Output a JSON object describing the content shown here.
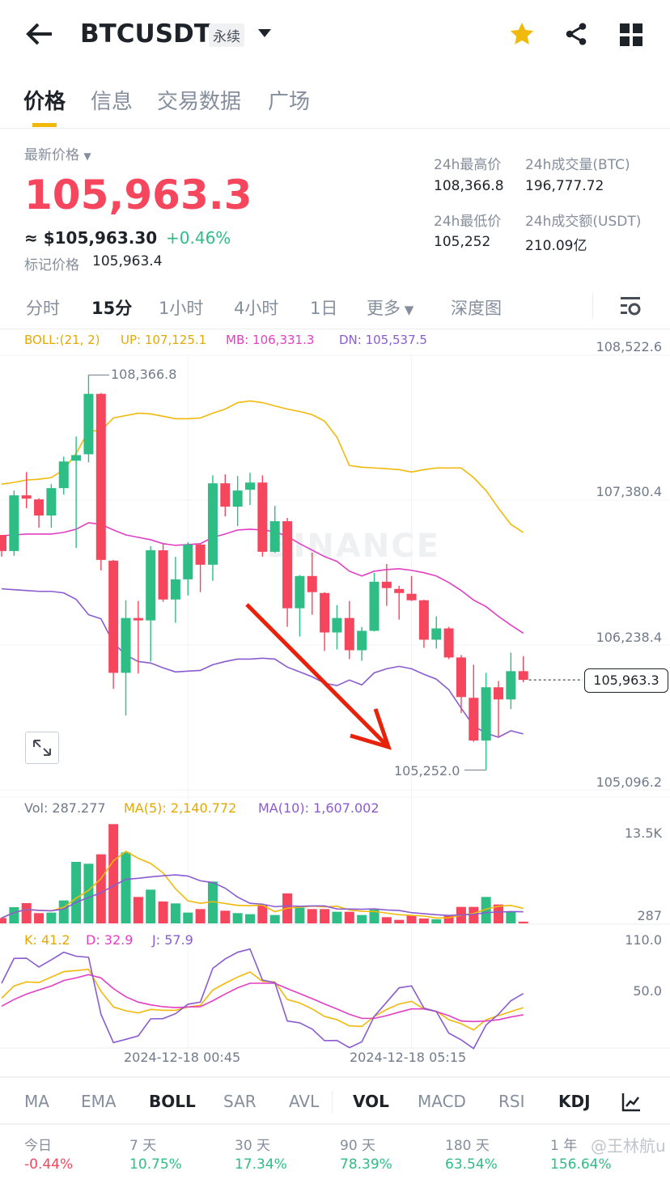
{
  "header": {
    "symbol": "BTCUSDT",
    "contract_type": "永续"
  },
  "tabs": [
    "价格",
    "信息",
    "交易数据",
    "广场"
  ],
  "price": {
    "label": "最新价格",
    "last": "105,963.3",
    "usd": "≈ $105,963.30",
    "change": "+0.46%",
    "mark_label": "标记价格",
    "mark_value": "105,963.4"
  },
  "stats": {
    "high_label": "24h最高价",
    "high_value": "108,366.8",
    "vol_btc_label": "24h成交量(BTC)",
    "vol_btc_value": "196,777.72",
    "low_label": "24h最低价",
    "low_value": "105,252",
    "vol_usdt_label": "24h成交额(USDT)",
    "vol_usdt_value": "210.09亿"
  },
  "intervals": [
    "分时",
    "15分",
    "1小时",
    "4小时",
    "1日",
    "更多",
    "深度图"
  ],
  "boll_legend": {
    "title": "BOLL:(21, 2)",
    "up": "UP: 107,125.1",
    "mb": "MB: 106,331.3",
    "dn": "DN: 105,537.5"
  },
  "vol_legend": {
    "vol": "Vol: 287.277",
    "ma5": "MA(5): 2,140.772",
    "ma10": "MA(10): 1,607.002"
  },
  "kdj_legend": {
    "k": "K: 41.2",
    "d": "D: 32.9",
    "j": "J: 57.9"
  },
  "watermark": "BINANCE",
  "colors": {
    "up": "#2EBD85",
    "down": "#F6465D",
    "boll_up": "#F0B90B",
    "boll_mb": "#E23FC2",
    "boll_dn": "#8A5CD0",
    "arrow": "#E8220A"
  },
  "chart_data": {
    "type": "candlestick",
    "interval": "15m",
    "price_axis": {
      "ticks": [
        "108,522.6",
        "107,380.4",
        "106,238.4",
        "105,096.2"
      ],
      "tick_values": [
        108522.6,
        107380.4,
        106238.4,
        105096.2
      ]
    },
    "x_labels": [
      "2024-12-18 00:45",
      "2024-12-18 05:15"
    ],
    "x_label_index": [
      15,
      33
    ],
    "max_label": "108,366.8",
    "min_label": "105,252.0",
    "current_price_label": "105,963.3",
    "current_price": 105963.3,
    "candles": [
      [
        107106,
        107106,
        106935,
        106979
      ],
      [
        106979,
        107456,
        106941,
        107418
      ],
      [
        107418,
        107602,
        107316,
        107392
      ],
      [
        107386,
        107395,
        107163,
        107259
      ],
      [
        107259,
        107507,
        107163,
        107475
      ],
      [
        107475,
        107723,
        107424,
        107685
      ],
      [
        107691,
        107882,
        107004,
        107735
      ],
      [
        107742,
        108366.8,
        107678,
        108218
      ],
      [
        108218,
        108225,
        106826,
        106909
      ],
      [
        106903,
        106910,
        105892,
        106019
      ],
      [
        106019,
        106591,
        105682,
        106451
      ],
      [
        106451,
        106585,
        106013,
        106432
      ],
      [
        106432,
        107017,
        106108,
        106985
      ],
      [
        106985,
        107036,
        106578,
        106597
      ],
      [
        106597,
        106934,
        106413,
        106756
      ],
      [
        106756,
        107049,
        106629,
        107030
      ],
      [
        107030,
        107035,
        106655,
        106871
      ],
      [
        106871,
        107576,
        106744,
        107513
      ],
      [
        107513,
        107583,
        107252,
        107329
      ],
      [
        107329,
        107570,
        107176,
        107456
      ],
      [
        107462,
        107596,
        107341,
        107519
      ],
      [
        107519,
        107576,
        106935,
        106973
      ],
      [
        106973,
        107335,
        106965,
        107214
      ],
      [
        107214,
        107240,
        106381,
        106528
      ],
      [
        106528,
        106790,
        106305,
        106782
      ],
      [
        106782,
        106966,
        106477,
        106655
      ],
      [
        106648,
        106655,
        106191,
        106337
      ],
      [
        106337,
        106553,
        106203,
        106451
      ],
      [
        106451,
        106585,
        106127,
        106197
      ],
      [
        106197,
        106381,
        106114,
        106350
      ],
      [
        106350,
        106807,
        106345,
        106737
      ],
      [
        106737,
        106877,
        106547,
        106687
      ],
      [
        106680,
        106705,
        106438,
        106648
      ],
      [
        106642,
        106782,
        106585,
        106591
      ],
      [
        106591,
        106595,
        106216,
        106280
      ],
      [
        106280,
        106464,
        106210,
        106369
      ],
      [
        106369,
        106381,
        106127,
        106140
      ],
      [
        106140,
        106159,
        105701,
        105828
      ],
      [
        105822,
        106083,
        105475,
        105485
      ],
      [
        105485,
        106019,
        105252,
        105905
      ],
      [
        105905,
        105955,
        105510,
        105809
      ],
      [
        105809,
        106178,
        105733,
        106032
      ],
      [
        106032,
        106150,
        105945,
        105963.3
      ]
    ],
    "boll_up": [
      107507,
      107520,
      107539,
      107545,
      107558,
      107621,
      107748,
      107927,
      107927,
      108028,
      108047,
      108066,
      108060,
      108041,
      108022,
      108022,
      108028,
      108066,
      108098,
      108149,
      108162,
      108149,
      108123,
      108098,
      108079,
      108054,
      108003,
      107876,
      107653,
      107640,
      107634,
      107628,
      107621,
      107602,
      107621,
      107634,
      107634,
      107634,
      107558,
      107456,
      107316,
      107189,
      107125.1
    ],
    "boll_mb": [
      107100,
      107106,
      107113,
      107113,
      107113,
      107126,
      107151,
      107202,
      107189,
      107145,
      107106,
      107087,
      107068,
      107037,
      107024,
      107030,
      107037,
      107087,
      107113,
      107145,
      107151,
      107145,
      107132,
      107094,
      107037,
      106986,
      106935,
      106897,
      106820,
      106782,
      106820,
      106833,
      106839,
      106827,
      106808,
      106782,
      106731,
      106668,
      106592,
      106541,
      106464,
      106395,
      106331.3
    ],
    "boll_dn": [
      106681,
      106674,
      106668,
      106661,
      106661,
      106649,
      106598,
      106477,
      106445,
      106255,
      106159,
      106108,
      106096,
      106058,
      106026,
      106032,
      106038,
      106083,
      106108,
      106127,
      106127,
      106134,
      106127,
      106064,
      106026,
      105988,
      105937,
      105918,
      105962,
      105924,
      106019,
      106051,
      106070,
      106051,
      106007,
      105969,
      105886,
      105740,
      105600,
      105543,
      105511,
      105562,
      105537.5
    ],
    "volume_axis": {
      "ticks": [
        "13.5K",
        "287"
      ]
    },
    "volume": [
      900,
      2700,
      3375,
      1710,
      1800,
      3825,
      10260,
      9945,
      11520,
      16560,
      11835,
      4410,
      5625,
      3645,
      3330,
      1800,
      2385,
      6975,
      2115,
      1710,
      1530,
      2970,
      1395,
      4995,
      2610,
      2385,
      2385,
      1935,
      1935,
      1395,
      2295,
      1035,
      585,
      1350,
      810,
      675,
      1260,
      2745,
      2745,
      4410,
      3150,
      1935,
      287.277
    ],
    "kdj_axis": {
      "ticks": [
        "110.0",
        "50.0"
      ]
    },
    "k": [
      52.5,
      66.8,
      71.6,
      70.9,
      77.3,
      83.6,
      84.9,
      86.5,
      60.5,
      42.1,
      37.6,
      35.1,
      39.2,
      38.2,
      38.2,
      42.1,
      44.0,
      62.0,
      70.0,
      77.3,
      83.3,
      72.2,
      71.6,
      50.9,
      46.8,
      39.8,
      30.9,
      27.1,
      19.8,
      19.2,
      30.9,
      39.2,
      45.6,
      48.7,
      39.8,
      37.3,
      27.1,
      22.4,
      15.1,
      27.1,
      31.9,
      36.7,
      41.2
    ],
    "d": [
      43.0,
      50.9,
      57.3,
      62.1,
      66.8,
      73.2,
      76.3,
      80.2,
      76.3,
      63.7,
      54.1,
      47.8,
      44.6,
      42.4,
      41.4,
      42.1,
      42.4,
      49.4,
      57.3,
      64.6,
      70.0,
      70.0,
      70.0,
      63.7,
      57.9,
      51.9,
      45.6,
      39.8,
      33.5,
      28.7,
      28.7,
      31.9,
      36.0,
      39.8,
      39.8,
      36.7,
      31.9,
      25.5,
      24.9,
      25.5,
      27.1,
      30.3,
      32.9
    ],
    "j": [
      70.0,
      99.2,
      99.5,
      89.1,
      97.6,
      106.5,
      101.8,
      100.5,
      33.5,
      0.2,
      4.0,
      8.1,
      28.1,
      28.4,
      34.2,
      45.3,
      47.8,
      87.5,
      98.6,
      106.5,
      110.3,
      73.8,
      70.7,
      25.6,
      23.4,
      16.1,
      2.4,
      2.7,
      -5.8,
      1.1,
      31.0,
      47.8,
      64.6,
      66.9,
      40.8,
      36.7,
      11.3,
      3.4,
      -6.8,
      20.8,
      33.5,
      49.4,
      57.9
    ]
  },
  "indicators": [
    "MA",
    "EMA",
    "BOLL",
    "SAR",
    "AVL",
    "VOL",
    "MACD",
    "RSI",
    "KDJ"
  ],
  "returns": [
    {
      "label": "今日",
      "value": "-0.44%",
      "dir": "down"
    },
    {
      "label": "7 天",
      "value": "10.75%",
      "dir": "up"
    },
    {
      "label": "30 天",
      "value": "17.34%",
      "dir": "up"
    },
    {
      "label": "90 天",
      "value": "78.39%",
      "dir": "up"
    },
    {
      "label": "180 天",
      "value": "63.54%",
      "dir": "up"
    },
    {
      "label": "1 年",
      "value": "156.64%",
      "dir": "up"
    }
  ],
  "overlay_watermark": "@王林航u"
}
